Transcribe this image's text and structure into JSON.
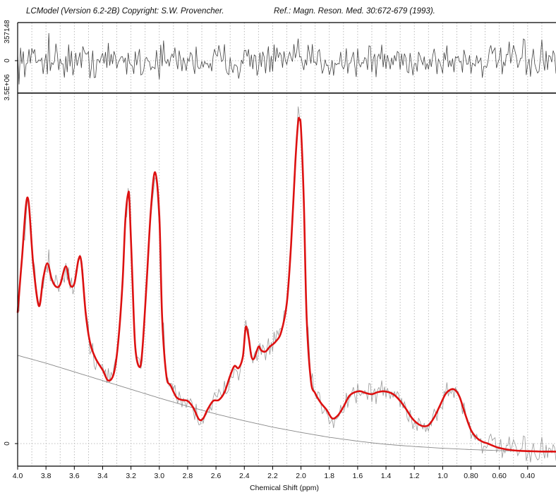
{
  "header": {
    "title": "LCModel (Version 6.2-2B) Copyright: S.W. Provencher.",
    "reference": "Ref.: Magn. Reson. Med. 30:672-679 (1993)."
  },
  "colors": {
    "fit": "#dd1111",
    "data": "#999999",
    "baseline": "#888888",
    "residual": "#444444",
    "grid": "#aaaaaa",
    "axis": "#000000"
  },
  "chart_data": [
    {
      "type": "line",
      "panel": "residuals",
      "ylim": [
        -357148,
        357148
      ],
      "ytick_labels": [
        "357148",
        "0"
      ],
      "xlim": [
        4.0,
        0.2
      ],
      "x_reversed": true,
      "series": [
        {
          "role": "residual",
          "x_range": [
            4.0,
            0.2
          ],
          "amplitude": 110000,
          "points": 380,
          "spike": {
            "x": 3.78,
            "y": 357148
          }
        }
      ]
    },
    {
      "type": "line",
      "panel": "spectrum",
      "xlabel": "Chemical Shift (ppm)",
      "xlim": [
        4.0,
        0.2
      ],
      "x_reversed": true,
      "ylim": [
        -100000,
        3500000
      ],
      "ytick_labels": [
        "3.5E+06",
        "0"
      ],
      "xticks": [
        4.0,
        3.8,
        3.6,
        3.4,
        3.2,
        3.0,
        2.8,
        2.6,
        2.4,
        2.2,
        2.0,
        1.8,
        1.6,
        1.4,
        1.2,
        1.0,
        0.8,
        0.6,
        0.4
      ],
      "xtick_labels": [
        "4.0",
        "3.8",
        "3.6",
        "3.4",
        "3.2",
        "3.0",
        "2.8",
        "2.6",
        "2.4",
        "2.2",
        "2.0",
        "1.8",
        "1.6",
        "1.4",
        "1.2",
        "1.0",
        "0.80",
        "0.60",
        "0.40"
      ],
      "grid": "vertical",
      "series": [
        {
          "role": "fit",
          "x": [
            4.0,
            3.97,
            3.93,
            3.89,
            3.85,
            3.82,
            3.79,
            3.76,
            3.73,
            3.7,
            3.66,
            3.63,
            3.6,
            3.57,
            3.55,
            3.52,
            3.49,
            3.45,
            3.4,
            3.36,
            3.32,
            3.29,
            3.26,
            3.24,
            3.22,
            3.21,
            3.19,
            3.17,
            3.14,
            3.12,
            3.09,
            3.06,
            3.03,
            3.0,
            2.98,
            2.95,
            2.92,
            2.88,
            2.84,
            2.8,
            2.76,
            2.72,
            2.69,
            2.66,
            2.62,
            2.58,
            2.54,
            2.5,
            2.47,
            2.44,
            2.41,
            2.39,
            2.37,
            2.35,
            2.33,
            2.3,
            2.28,
            2.25,
            2.22,
            2.18,
            2.14,
            2.1,
            2.07,
            2.04,
            2.02,
            2.01,
            2.0,
            1.98,
            1.96,
            1.93,
            1.9,
            1.86,
            1.82,
            1.78,
            1.74,
            1.7,
            1.66,
            1.62,
            1.58,
            1.54,
            1.5,
            1.46,
            1.42,
            1.38,
            1.34,
            1.3,
            1.26,
            1.22,
            1.18,
            1.14,
            1.1,
            1.06,
            1.02,
            0.98,
            0.94,
            0.91,
            0.88,
            0.84,
            0.8,
            0.76,
            0.72,
            0.68,
            0.64,
            0.6,
            0.55,
            0.5,
            0.45,
            0.4,
            0.35,
            0.3,
            0.25,
            0.2
          ],
          "y": [
            1350000,
            1900000,
            2540000,
            1850000,
            1420000,
            1700000,
            1860000,
            1700000,
            1620000,
            1640000,
            1830000,
            1640000,
            1650000,
            1900000,
            1870000,
            1350000,
            1050000,
            880000,
            760000,
            650000,
            730000,
            1050000,
            1650000,
            2300000,
            2580000,
            2480000,
            1700000,
            1000000,
            790000,
            960000,
            1650000,
            2400000,
            2800000,
            2350000,
            1300000,
            700000,
            600000,
            480000,
            450000,
            440000,
            370000,
            250000,
            260000,
            350000,
            440000,
            450000,
            530000,
            700000,
            800000,
            780000,
            900000,
            1200000,
            1100000,
            900000,
            880000,
            1000000,
            960000,
            950000,
            1000000,
            1050000,
            1150000,
            1450000,
            2050000,
            2900000,
            3320000,
            3340000,
            3250000,
            2500000,
            1300000,
            650000,
            520000,
            420000,
            350000,
            260000,
            290000,
            380000,
            490000,
            530000,
            540000,
            520000,
            510000,
            530000,
            540000,
            530000,
            500000,
            440000,
            360000,
            270000,
            210000,
            180000,
            190000,
            270000,
            390000,
            510000,
            560000,
            550000,
            480000,
            300000,
            140000,
            60000,
            20000,
            0,
            -25000,
            -45000,
            -60000,
            -70000,
            -75000,
            -78000,
            -80000,
            -82000,
            -82000,
            -83000
          ]
        },
        {
          "role": "data",
          "description_of_noise": "raw spectrum = fit + residual"
        },
        {
          "role": "baseline",
          "x": [
            4.0,
            3.8,
            3.6,
            3.4,
            3.2,
            3.0,
            2.8,
            2.6,
            2.4,
            2.2,
            2.0,
            1.8,
            1.6,
            1.4,
            1.2,
            1.0,
            0.8,
            0.6,
            0.4,
            0.2
          ],
          "y": [
            910000,
            830000,
            740000,
            650000,
            560000,
            470000,
            385000,
            305000,
            235000,
            170000,
            115000,
            65000,
            25000,
            -8000,
            -30000,
            -48000,
            -62000,
            -72000,
            -78000,
            -82000
          ]
        }
      ]
    }
  ]
}
